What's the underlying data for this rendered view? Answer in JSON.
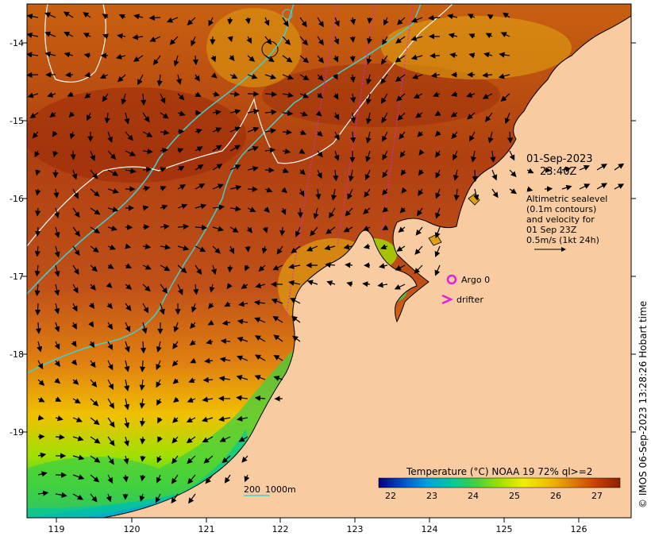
{
  "timestamp_date": "01-Sep-2023",
  "timestamp_time": "23:40Z",
  "altimetry_note": [
    "Altimetric sealevel",
    "(0.1m contours)",
    "and velocity for",
    "01 Sep 23Z",
    "0.5m/s (1kt 24h)"
  ],
  "legend": {
    "argo_label": "Argo 0",
    "drifter_label": "drifter",
    "argo_color": "#e020e0",
    "drifter_color": "#e020e0"
  },
  "colorbar": {
    "title": "Temperature (°C) NOAA 19 72% ql>=2",
    "ticks": [
      "22",
      "23",
      "24",
      "25",
      "26",
      "27"
    ],
    "colors": [
      "#000080",
      "#0050c8",
      "#00a0e0",
      "#00c8a0",
      "#40d040",
      "#a0e000",
      "#f0f000",
      "#f0c000",
      "#e08000",
      "#c84000",
      "#902000"
    ]
  },
  "scale_labels": {
    "left": "200",
    "right": "1000m"
  },
  "credit": "© IMOS 06-Sep-2023 13:28:26 Hobart time",
  "axes": {
    "x_ticks": [
      "119",
      "120",
      "121",
      "122",
      "123",
      "124",
      "125",
      "126"
    ],
    "y_ticks": [
      "-14",
      "-15",
      "-16",
      "-17",
      "-18",
      "-19"
    ]
  },
  "colors": {
    "land": "#f8cca0",
    "warm": "#b04010",
    "isobath_200": "#40d0d0",
    "altimetry_contour": "#ffffff",
    "track": "#e020e0"
  }
}
